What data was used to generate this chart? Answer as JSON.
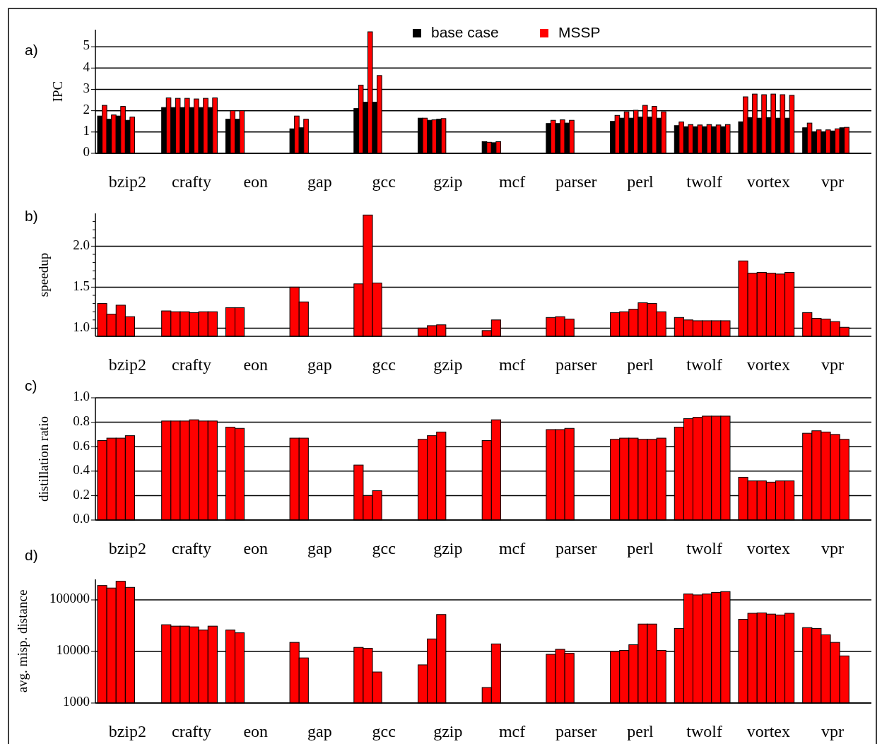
{
  "chart_data": [
    {
      "type": "bar",
      "title": "a)",
      "ylabel": "IPC",
      "categories": [
        "bzip2",
        "crafty",
        "eon",
        "gap",
        "gcc",
        "gzip",
        "mcf",
        "parser",
        "perl",
        "twolf",
        "vortex",
        "vpr"
      ],
      "ylim": [
        0,
        5.8
      ],
      "yticks": [
        0,
        1,
        2,
        3,
        4,
        5
      ],
      "grid": "y",
      "legend": "top",
      "series": [
        {
          "name": "base case",
          "color": "#000000",
          "values": [
            1.75,
            2.15,
            1.6,
            1.15,
            2.1,
            1.65,
            0.55,
            1.4,
            1.5,
            1.3,
            1.48,
            1.2
          ]
        },
        {
          "name": "MSSP",
          "color": "#ff0000",
          "values": [
            2.25,
            2.6,
            2.0,
            1.75,
            3.2,
            1.65,
            0.52,
            1.55,
            1.78,
            1.47,
            2.65,
            1.42
          ]
        },
        {
          "color": "#000000",
          "values": [
            1.6,
            2.15,
            1.6,
            1.2,
            2.4,
            1.55,
            0.5,
            1.4,
            1.65,
            1.25,
            1.68,
            1.0
          ]
        },
        {
          "color": "#ff0000",
          "values": [
            1.8,
            2.58,
            2.0,
            1.6,
            5.7,
            1.57,
            0.55,
            1.57,
            1.95,
            1.35,
            2.78,
            1.1
          ]
        },
        {
          "color": "#000000",
          "values": [
            1.75,
            2.15,
            null,
            null,
            2.4,
            1.6,
            null,
            1.42,
            1.65,
            1.25,
            1.65,
            1.0
          ]
        },
        {
          "color": "#ff0000",
          "values": [
            2.2,
            2.58,
            null,
            null,
            3.65,
            1.63,
            null,
            1.55,
            2.02,
            1.33,
            2.75,
            1.1
          ]
        },
        {
          "color": "#000000",
          "values": [
            1.55,
            2.15,
            null,
            null,
            null,
            null,
            null,
            null,
            1.7,
            1.25,
            1.68,
            1.05
          ]
        },
        {
          "color": "#ff0000",
          "values": [
            1.7,
            2.55,
            null,
            null,
            null,
            null,
            null,
            null,
            2.25,
            1.35,
            2.78,
            1.15
          ]
        },
        {
          "color": "#000000",
          "values": [
            null,
            2.15,
            null,
            null,
            null,
            null,
            null,
            null,
            1.7,
            1.25,
            1.65,
            1.2
          ]
        },
        {
          "color": "#ff0000",
          "values": [
            null,
            2.58,
            null,
            null,
            null,
            null,
            null,
            null,
            2.2,
            1.33,
            2.75,
            1.22
          ]
        },
        {
          "color": "#000000",
          "values": [
            null,
            2.15,
            null,
            null,
            null,
            null,
            null,
            null,
            1.65,
            1.25,
            1.65,
            null
          ]
        },
        {
          "color": "#ff0000",
          "values": [
            null,
            2.6,
            null,
            null,
            null,
            null,
            null,
            null,
            1.95,
            1.35,
            2.72,
            null
          ]
        }
      ]
    },
    {
      "type": "bar",
      "title": "b)",
      "ylabel": "speedup",
      "categories": [
        "bzip2",
        "crafty",
        "eon",
        "gap",
        "gcc",
        "gzip",
        "mcf",
        "parser",
        "perl",
        "twolf",
        "vortex",
        "vpr"
      ],
      "ylim": [
        0.9,
        2.4
      ],
      "yticks": [
        {
          "value": 1.0,
          "label": "1.0"
        },
        {
          "value": 1.1,
          "label": null
        },
        {
          "value": 1.2,
          "label": null
        },
        {
          "value": 1.3,
          "label": null
        },
        {
          "value": 1.4,
          "label": null
        },
        {
          "value": 1.5,
          "label": "1.5"
        },
        {
          "value": 1.6,
          "label": null
        },
        {
          "value": 1.7,
          "label": null
        },
        {
          "value": 1.8,
          "label": null
        },
        {
          "value": 1.9,
          "label": null
        },
        {
          "value": 2.0,
          "label": "2.0"
        },
        {
          "value": 2.1,
          "label": null
        },
        {
          "value": 2.2,
          "label": null
        },
        {
          "value": 2.3,
          "label": null
        }
      ],
      "grid": "y",
      "series": [
        {
          "color": "#ff0000",
          "values": [
            1.3,
            1.21,
            1.25,
            1.5,
            1.54,
            1.0,
            0.97,
            1.13,
            1.19,
            1.13,
            1.82,
            1.19
          ]
        },
        {
          "color": "#ff0000",
          "values": [
            1.17,
            1.2,
            1.25,
            1.32,
            2.38,
            1.03,
            1.1,
            1.14,
            1.2,
            1.1,
            1.67,
            1.12
          ]
        },
        {
          "color": "#ff0000",
          "values": [
            1.28,
            1.2,
            null,
            null,
            1.55,
            1.04,
            null,
            1.11,
            1.23,
            1.09,
            1.68,
            1.11
          ]
        },
        {
          "color": "#ff0000",
          "values": [
            1.14,
            1.19,
            null,
            null,
            null,
            null,
            null,
            null,
            1.31,
            1.09,
            1.67,
            1.08
          ]
        },
        {
          "color": "#ff0000",
          "values": [
            null,
            1.2,
            null,
            null,
            null,
            null,
            null,
            null,
            1.3,
            1.09,
            1.66,
            1.01
          ]
        },
        {
          "color": "#ff0000",
          "values": [
            null,
            1.2,
            null,
            null,
            null,
            null,
            null,
            null,
            1.2,
            1.09,
            1.68,
            null
          ]
        }
      ]
    },
    {
      "type": "bar",
      "title": "c)",
      "ylabel": "distillation ratio",
      "categories": [
        "bzip2",
        "crafty",
        "eon",
        "gap",
        "gcc",
        "gzip",
        "mcf",
        "parser",
        "perl",
        "twolf",
        "vortex",
        "vpr"
      ],
      "ylim": [
        0,
        1
      ],
      "yticks": [
        {
          "value": 0,
          "label": "0.0"
        },
        {
          "value": 0.2,
          "label": "0.2"
        },
        {
          "value": 0.4,
          "label": "0.4"
        },
        {
          "value": 0.6,
          "label": "0.6"
        },
        {
          "value": 0.8,
          "label": "0.8"
        },
        {
          "value": 1,
          "label": "1.0"
        }
      ],
      "grid": "y",
      "series": [
        {
          "color": "#ff0000",
          "values": [
            0.65,
            0.81,
            0.76,
            0.67,
            0.45,
            0.66,
            0.65,
            0.74,
            0.66,
            0.76,
            0.35,
            0.71
          ]
        },
        {
          "color": "#ff0000",
          "values": [
            0.67,
            0.81,
            0.75,
            0.67,
            0.2,
            0.69,
            0.82,
            0.74,
            0.67,
            0.83,
            0.32,
            0.73
          ]
        },
        {
          "color": "#ff0000",
          "values": [
            0.67,
            0.81,
            null,
            null,
            0.24,
            0.72,
            null,
            0.75,
            0.67,
            0.84,
            0.32,
            0.72
          ]
        },
        {
          "color": "#ff0000",
          "values": [
            0.69,
            0.82,
            null,
            null,
            null,
            null,
            null,
            null,
            0.66,
            0.85,
            0.31,
            0.7
          ]
        },
        {
          "color": "#ff0000",
          "values": [
            null,
            0.81,
            null,
            null,
            null,
            null,
            null,
            null,
            0.66,
            0.85,
            0.32,
            0.66
          ]
        },
        {
          "color": "#ff0000",
          "values": [
            null,
            0.81,
            null,
            null,
            null,
            null,
            null,
            null,
            0.67,
            0.85,
            0.32,
            null
          ]
        }
      ]
    },
    {
      "type": "bar",
      "title": "d)",
      "ylabel": "avg. misp. distance",
      "categories": [
        "bzip2",
        "crafty",
        "eon",
        "gap",
        "gcc",
        "gzip",
        "mcf",
        "parser",
        "perl",
        "twolf",
        "vortex",
        "vpr"
      ],
      "log": true,
      "ylim": [
        1000,
        250000
      ],
      "yticks": [
        1000,
        10000,
        100000
      ],
      "grid": "y",
      "series": [
        {
          "color": "#ff0000",
          "values": [
            190000,
            33000,
            26000,
            15000,
            12000,
            5500,
            2000,
            8800,
            10000,
            28000,
            42000,
            29000
          ]
        },
        {
          "color": "#ff0000",
          "values": [
            170000,
            31000,
            23000,
            7500,
            11500,
            17500,
            14000,
            11000,
            10500,
            130000,
            55000,
            28000
          ]
        },
        {
          "color": "#ff0000",
          "values": [
            230000,
            31000,
            null,
            null,
            4000,
            52000,
            null,
            9200,
            13500,
            125000,
            56000,
            21000
          ]
        },
        {
          "color": "#ff0000",
          "values": [
            175000,
            30000,
            null,
            null,
            null,
            null,
            null,
            null,
            34000,
            130000,
            53000,
            15000
          ]
        },
        {
          "color": "#ff0000",
          "values": [
            null,
            26000,
            null,
            null,
            null,
            null,
            null,
            null,
            34000,
            140000,
            51000,
            8200
          ]
        },
        {
          "color": "#ff0000",
          "values": [
            null,
            31000,
            null,
            null,
            null,
            null,
            null,
            null,
            10500,
            145000,
            55000,
            null
          ]
        }
      ]
    }
  ]
}
